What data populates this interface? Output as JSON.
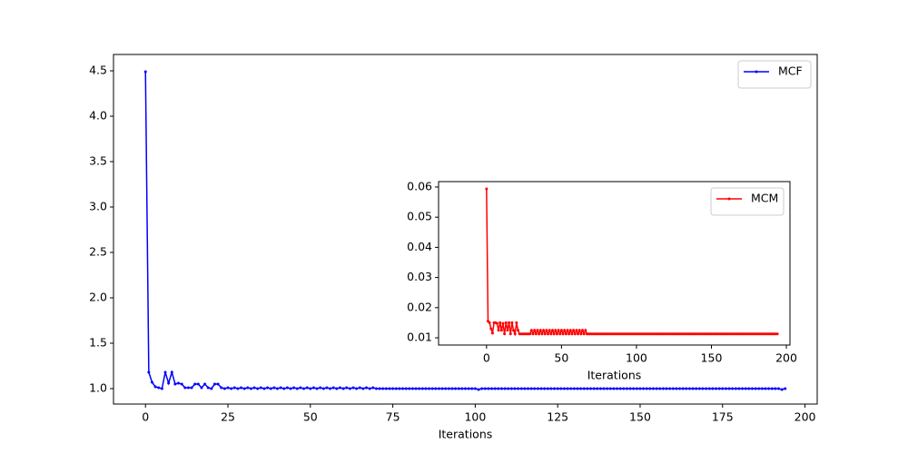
{
  "chart_data": [
    {
      "type": "line",
      "xlabel": "Iterations",
      "x": [
        0,
        1,
        2,
        3,
        4,
        5,
        6,
        7,
        8,
        9,
        10,
        11,
        12,
        13,
        14,
        15,
        16,
        17,
        18,
        19,
        20,
        21,
        22,
        23,
        24,
        25,
        26,
        27,
        28,
        29,
        30,
        31,
        32,
        33,
        34,
        35,
        36,
        37,
        38,
        39,
        40,
        41,
        42,
        43,
        44,
        45,
        46,
        47,
        48,
        49,
        50,
        51,
        52,
        53,
        54,
        55,
        56,
        57,
        58,
        59,
        60,
        61,
        62,
        63,
        64,
        65,
        66,
        67,
        68,
        69,
        70,
        71,
        72,
        73,
        74,
        75,
        76,
        77,
        78,
        79,
        80,
        81,
        82,
        83,
        84,
        85,
        86,
        87,
        88,
        89,
        90,
        91,
        92,
        93,
        94,
        95,
        96,
        97,
        98,
        99,
        100,
        101,
        102,
        103,
        104,
        105,
        106,
        107,
        108,
        109,
        110,
        111,
        112,
        113,
        114,
        115,
        116,
        117,
        118,
        119,
        120,
        121,
        122,
        123,
        124,
        125,
        126,
        127,
        128,
        129,
        130,
        131,
        132,
        133,
        134,
        135,
        136,
        137,
        138,
        139,
        140,
        141,
        142,
        143,
        144,
        145,
        146,
        147,
        148,
        149,
        150,
        151,
        152,
        153,
        154,
        155,
        156,
        157,
        158,
        159,
        160,
        161,
        162,
        163,
        164,
        165,
        166,
        167,
        168,
        169,
        170,
        171,
        172,
        173,
        174,
        175,
        176,
        177,
        178,
        179,
        180,
        181,
        182,
        183,
        184,
        185,
        186,
        187,
        188,
        189,
        190,
        191,
        192,
        193,
        194
      ],
      "series": [
        {
          "name": "MCF",
          "color": "#0000ff",
          "values": [
            4.49,
            1.18,
            1.07,
            1.02,
            1.01,
            1.0,
            1.18,
            1.06,
            1.18,
            1.05,
            1.06,
            1.05,
            1.01,
            1.01,
            1.01,
            1.05,
            1.05,
            1.01,
            1.05,
            1.01,
            1.0,
            1.05,
            1.05,
            1.01,
            1.0,
            1.01,
            1.0,
            1.01,
            1.0,
            1.01,
            1.0,
            1.01,
            1.0,
            1.01,
            1.0,
            1.01,
            1.0,
            1.01,
            1.0,
            1.01,
            1.0,
            1.01,
            1.0,
            1.01,
            1.0,
            1.01,
            1.0,
            1.01,
            1.0,
            1.01,
            1.0,
            1.01,
            1.0,
            1.01,
            1.0,
            1.01,
            1.0,
            1.01,
            1.0,
            1.01,
            1.0,
            1.01,
            1.0,
            1.01,
            1.0,
            1.01,
            1.0,
            1.01,
            1.0,
            1.01,
            1.0,
            1.0,
            1.0,
            1.0,
            1.0,
            1.0,
            1.0,
            1.0,
            1.0,
            1.0,
            1.0,
            1.0,
            1.0,
            1.0,
            1.0,
            1.0,
            1.0,
            1.0,
            1.0,
            1.0,
            1.0,
            1.0,
            1.0,
            1.0,
            1.0,
            1.0,
            1.0,
            1.0,
            1.0,
            1.0,
            1.0,
            0.99,
            1.0,
            1.0,
            1.0,
            1.0,
            1.0,
            1.0,
            1.0,
            1.0,
            1.0,
            1.0,
            1.0,
            1.0,
            1.0,
            1.0,
            1.0,
            1.0,
            1.0,
            1.0,
            1.0,
            1.0,
            1.0,
            1.0,
            1.0,
            1.0,
            1.0,
            1.0,
            1.0,
            1.0,
            1.0,
            1.0,
            1.0,
            1.0,
            1.0,
            1.0,
            1.0,
            1.0,
            1.0,
            1.0,
            1.0,
            1.0,
            1.0,
            1.0,
            1.0,
            1.0,
            1.0,
            1.0,
            1.0,
            1.0,
            1.0,
            1.0,
            1.0,
            1.0,
            1.0,
            1.0,
            1.0,
            1.0,
            1.0,
            1.0,
            1.0,
            1.0,
            1.0,
            1.0,
            1.0,
            1.0,
            1.0,
            1.0,
            1.0,
            1.0,
            1.0,
            1.0,
            1.0,
            1.0,
            1.0,
            1.0,
            1.0,
            1.0,
            1.0,
            1.0,
            1.0,
            1.0,
            1.0,
            1.0,
            1.0,
            1.0,
            1.0,
            1.0,
            1.0,
            1.0,
            1.0,
            1.0,
            1.0,
            0.99,
            1.0
          ]
        }
      ],
      "xlim": [
        -9.7,
        203.7
      ],
      "xticks": [
        0,
        25,
        50,
        75,
        100,
        125,
        150,
        175,
        200
      ],
      "ylim": [
        0.83,
        4.68
      ],
      "yticks": [
        {
          "value": 1,
          "label": "1.0"
        },
        1.5,
        {
          "value": 2,
          "label": "2.0"
        },
        2.5,
        {
          "value": 3,
          "label": "3.0"
        },
        3.5,
        {
          "value": 4,
          "label": "4.0"
        },
        4.5
      ],
      "legend": "upper right"
    },
    {
      "type": "line",
      "xlabel": "Iterations",
      "x": [
        0,
        1,
        2,
        3,
        4,
        5,
        6,
        7,
        8,
        9,
        10,
        11,
        12,
        13,
        14,
        15,
        16,
        17,
        18,
        19,
        20,
        21,
        22,
        23,
        24,
        25,
        26,
        27,
        28,
        29,
        30,
        31,
        32,
        33,
        34,
        35,
        36,
        37,
        38,
        39,
        40,
        41,
        42,
        43,
        44,
        45,
        46,
        47,
        48,
        49,
        50,
        51,
        52,
        53,
        54,
        55,
        56,
        57,
        58,
        59,
        60,
        61,
        62,
        63,
        64,
        65,
        66,
        67,
        68,
        69,
        70,
        71,
        72,
        73,
        74,
        75,
        76,
        77,
        78,
        79,
        80,
        81,
        82,
        83,
        84,
        85,
        86,
        87,
        88,
        89,
        90,
        91,
        92,
        93,
        94,
        95,
        96,
        97,
        98,
        99,
        100,
        101,
        102,
        103,
        104,
        105,
        106,
        107,
        108,
        109,
        110,
        111,
        112,
        113,
        114,
        115,
        116,
        117,
        118,
        119,
        120,
        121,
        122,
        123,
        124,
        125,
        126,
        127,
        128,
        129,
        130,
        131,
        132,
        133,
        134,
        135,
        136,
        137,
        138,
        139,
        140,
        141,
        142,
        143,
        144,
        145,
        146,
        147,
        148,
        149,
        150,
        151,
        152,
        153,
        154,
        155,
        156,
        157,
        158,
        159,
        160,
        161,
        162,
        163,
        164,
        165,
        166,
        167,
        168,
        169,
        170,
        171,
        172,
        173,
        174,
        175,
        176,
        177,
        178,
        179,
        180,
        181,
        182,
        183,
        184,
        185,
        186,
        187,
        188,
        189,
        190,
        191,
        192,
        193,
        194
      ],
      "series": [
        {
          "name": "MCM",
          "color": "#ff0000",
          "values": [
            0.0594,
            0.0155,
            0.015,
            0.013,
            0.0115,
            0.015,
            0.015,
            0.0148,
            0.0125,
            0.015,
            0.0125,
            0.0148,
            0.0113,
            0.015,
            0.0125,
            0.015,
            0.0113,
            0.015,
            0.0125,
            0.0113,
            0.015,
            0.0125,
            0.0113,
            0.0113,
            0.0113,
            0.0113,
            0.0113,
            0.0113,
            0.0113,
            0.0113,
            0.0125,
            0.0113,
            0.0125,
            0.0113,
            0.0125,
            0.0113,
            0.0125,
            0.0113,
            0.0125,
            0.0113,
            0.0125,
            0.0113,
            0.0125,
            0.0113,
            0.0125,
            0.0113,
            0.0125,
            0.0113,
            0.0125,
            0.0113,
            0.0125,
            0.0113,
            0.0125,
            0.0113,
            0.0125,
            0.0113,
            0.0125,
            0.0113,
            0.0125,
            0.0113,
            0.0125,
            0.0113,
            0.0125,
            0.0113,
            0.0125,
            0.0113,
            0.0125,
            0.0113,
            0.0113,
            0.0113,
            0.0113,
            0.0113,
            0.0113,
            0.0113,
            0.0113,
            0.0113,
            0.0113,
            0.0113,
            0.0113,
            0.0113,
            0.0113,
            0.0113,
            0.0113,
            0.0113,
            0.0113,
            0.0113,
            0.0113,
            0.0113,
            0.0113,
            0.0113,
            0.0113,
            0.0113,
            0.0113,
            0.0113,
            0.0113,
            0.0113,
            0.0113,
            0.0113,
            0.0113,
            0.0113,
            0.0113,
            0.0113,
            0.0113,
            0.0113,
            0.0113,
            0.0113,
            0.0113,
            0.0113,
            0.0113,
            0.0113,
            0.0113,
            0.0113,
            0.0113,
            0.0113,
            0.0113,
            0.0113,
            0.0113,
            0.0113,
            0.0113,
            0.0113,
            0.0113,
            0.0113,
            0.0113,
            0.0113,
            0.0113,
            0.0113,
            0.0113,
            0.0113,
            0.0113,
            0.0113,
            0.0113,
            0.0113,
            0.0113,
            0.0113,
            0.0113,
            0.0113,
            0.0113,
            0.0113,
            0.0113,
            0.0113,
            0.0113,
            0.0113,
            0.0113,
            0.0113,
            0.0113,
            0.0113,
            0.0113,
            0.0113,
            0.0113,
            0.0113,
            0.0113,
            0.0113,
            0.0113,
            0.0113,
            0.0113,
            0.0113,
            0.0113,
            0.0113,
            0.0113,
            0.0113,
            0.0113,
            0.0113,
            0.0113,
            0.0113,
            0.0113,
            0.0113,
            0.0113,
            0.0113,
            0.0113,
            0.0113,
            0.0113,
            0.0113,
            0.0113,
            0.0113,
            0.0113,
            0.0113,
            0.0113,
            0.0113,
            0.0113,
            0.0113,
            0.0113,
            0.0113,
            0.0113,
            0.0113,
            0.0113,
            0.0113,
            0.0113,
            0.0113,
            0.0113,
            0.0113,
            0.0113,
            0.0113,
            0.0113,
            0.0113,
            0.0113
          ]
        }
      ],
      "xlim": [
        -32,
        202.4
      ],
      "xticks": [
        0,
        50,
        100,
        150,
        200
      ],
      "ylim": [
        0.0076,
        0.0618
      ],
      "yticks": [
        0.01,
        0.02,
        0.03,
        0.04,
        0.05,
        0.06
      ],
      "legend": "upper right"
    }
  ]
}
